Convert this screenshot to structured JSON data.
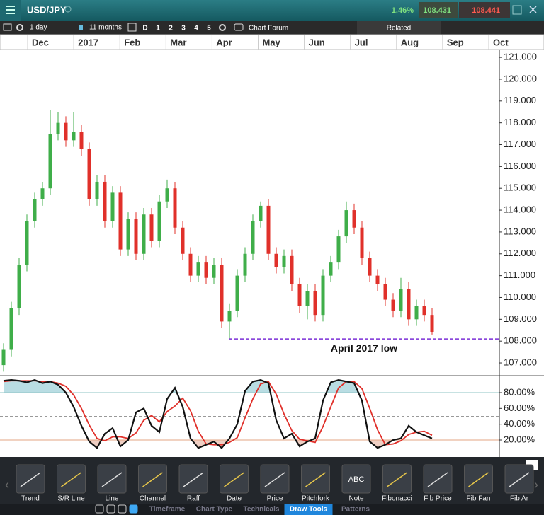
{
  "header": {
    "symbol": "USD/JPY",
    "change": "1.46%",
    "sell": "108.431",
    "buy": "108.441"
  },
  "toolbar": {
    "interval": "1 day",
    "range": "11 months",
    "periods": [
      "D",
      "1",
      "2",
      "3",
      "4",
      "5"
    ],
    "forum": "Chart Forum",
    "related": "Related"
  },
  "chart_data": [
    {
      "type": "candlestick",
      "categories": [
        "Dec",
        "2017",
        "Feb",
        "Mar",
        "Apr",
        "May",
        "Jun",
        "Jul",
        "Aug",
        "Sep",
        "Oct"
      ],
      "open": [
        106.9,
        107.6,
        109.5,
        111.5,
        113.5,
        114.5,
        115.0,
        117.5,
        118.0,
        117.2,
        117.6,
        116.8,
        114.5,
        115.3,
        113.5,
        114.8,
        112.2,
        113.6,
        112.0,
        113.8,
        112.6,
        114.4,
        115.0,
        113.2,
        112.0,
        111.0,
        111.6,
        110.9,
        111.5,
        108.9,
        109.4,
        111.0,
        112.0,
        113.5,
        114.2,
        112.0,
        111.4,
        111.9,
        110.6,
        109.6,
        110.3,
        109.2,
        111.0,
        111.6,
        112.8,
        114.0,
        113.2,
        111.8,
        111.0,
        110.6,
        109.9,
        109.4,
        110.4,
        109.0,
        109.6,
        109.2
      ],
      "high": [
        107.9,
        109.8,
        111.8,
        113.8,
        114.8,
        115.3,
        118.6,
        118.5,
        118.3,
        118.5,
        117.9,
        117.1,
        115.6,
        115.6,
        115.1,
        115.1,
        113.9,
        113.9,
        114.1,
        114.1,
        114.7,
        115.4,
        115.3,
        113.5,
        112.3,
        111.9,
        111.9,
        111.8,
        111.8,
        109.7,
        111.3,
        112.3,
        113.8,
        114.4,
        114.5,
        112.3,
        112.2,
        112.2,
        110.9,
        110.6,
        110.6,
        111.3,
        111.9,
        113.1,
        114.4,
        114.3,
        113.5,
        112.1,
        111.3,
        110.9,
        110.2,
        110.9,
        110.7,
        109.9,
        109.9,
        109.5
      ],
      "low": [
        106.6,
        107.3,
        109.2,
        111.2,
        113.2,
        114.2,
        114.7,
        117.2,
        116.9,
        116.9,
        116.5,
        114.2,
        114.2,
        113.2,
        113.2,
        111.9,
        111.9,
        111.7,
        111.7,
        112.3,
        112.3,
        114.1,
        112.9,
        111.7,
        110.7,
        110.7,
        110.6,
        110.6,
        108.6,
        108.1,
        109.1,
        110.7,
        111.7,
        113.2,
        111.7,
        111.1,
        111.1,
        110.3,
        109.3,
        109.0,
        108.9,
        108.9,
        110.7,
        111.3,
        112.5,
        112.9,
        111.5,
        110.7,
        110.3,
        109.6,
        109.1,
        109.1,
        108.7,
        108.7,
        108.9,
        108.3
      ],
      "close": [
        107.6,
        109.5,
        111.5,
        113.5,
        114.5,
        115.0,
        117.5,
        118.0,
        117.2,
        117.6,
        116.8,
        114.5,
        115.3,
        113.5,
        114.8,
        112.2,
        113.6,
        112.0,
        113.8,
        112.6,
        114.4,
        115.0,
        113.2,
        112.0,
        111.0,
        111.6,
        110.9,
        111.5,
        108.9,
        109.4,
        111.0,
        112.0,
        113.5,
        114.2,
        112.0,
        111.4,
        111.9,
        110.6,
        109.6,
        110.3,
        109.2,
        111.0,
        111.6,
        112.8,
        114.0,
        113.2,
        111.8,
        111.0,
        110.6,
        109.9,
        109.4,
        110.4,
        109.0,
        109.6,
        109.2,
        108.4
      ],
      "up_color": "#3fae49",
      "down_color": "#e0302a",
      "ylim": [
        106.45,
        121.36
      ],
      "yticks": [
        {
          "value": 121,
          "label": "121.000"
        },
        {
          "value": 120,
          "label": "120.000"
        },
        {
          "value": 119,
          "label": "119.000"
        },
        {
          "value": 118,
          "label": "118.000"
        },
        {
          "value": 117,
          "label": "117.000"
        },
        {
          "value": 116,
          "label": "116.000"
        },
        {
          "value": 115,
          "label": "115.000"
        },
        {
          "value": 114,
          "label": "114.000"
        },
        {
          "value": 113,
          "label": "113.000"
        },
        {
          "value": 112,
          "label": "112.000"
        },
        {
          "value": 111,
          "label": "111.000"
        },
        {
          "value": 110,
          "label": "110.000"
        },
        {
          "value": 109,
          "label": "109.000"
        },
        {
          "value": 108,
          "label": "108.000"
        },
        {
          "value": 107,
          "label": "107.000"
        }
      ],
      "annotation": {
        "text": "April 2017 low",
        "value": 108.1,
        "color": "#7b2fd6"
      }
    },
    {
      "type": "line",
      "series": [
        {
          "name": "%K",
          "color": "#111111",
          "values": [
            95,
            96,
            95,
            93,
            96,
            92,
            94,
            90,
            80,
            62,
            38,
            18,
            10,
            28,
            35,
            12,
            20,
            55,
            60,
            38,
            30,
            72,
            86,
            62,
            22,
            10,
            14,
            18,
            10,
            22,
            40,
            82,
            94,
            96,
            92,
            45,
            22,
            28,
            12,
            18,
            22,
            70,
            93,
            96,
            94,
            92,
            70,
            18,
            10,
            14,
            20,
            22,
            38,
            30,
            26,
            22
          ]
        },
        {
          "name": "%D",
          "color": "#e0302a",
          "values": [
            94,
            95,
            95,
            95,
            95,
            94,
            94,
            92,
            88,
            77,
            60,
            39,
            22,
            19,
            24,
            24,
            22,
            29,
            45,
            51,
            43,
            56,
            63,
            73,
            57,
            31,
            15,
            14,
            14,
            17,
            23,
            48,
            72,
            91,
            94,
            78,
            53,
            32,
            21,
            19,
            17,
            37,
            62,
            86,
            94,
            94,
            85,
            60,
            33,
            14,
            15,
            19,
            27,
            30,
            31,
            26
          ]
        }
      ],
      "ylim": [
        -0.6,
        99.7
      ],
      "yticks": [
        {
          "value": 80,
          "label": "80.00%"
        },
        {
          "value": 60,
          "label": "60.00%"
        },
        {
          "value": 40,
          "label": "40.00%"
        },
        {
          "value": 20,
          "label": "20.00%"
        }
      ],
      "upper": 80,
      "lower": 20,
      "midline": 50
    }
  ],
  "tools": [
    "Trend",
    "S/R Line",
    "Line",
    "Channel",
    "Raff",
    "Date",
    "Price",
    "Pitchfork",
    "Note",
    "Fibonacci",
    "Fib Price",
    "Fib Fan",
    "Fib Ar"
  ],
  "note_icon": "ABC",
  "tabs": [
    "Timeframe",
    "Chart Type",
    "Technicals",
    "Draw Tools",
    "Patterns"
  ],
  "active_tab": 3
}
